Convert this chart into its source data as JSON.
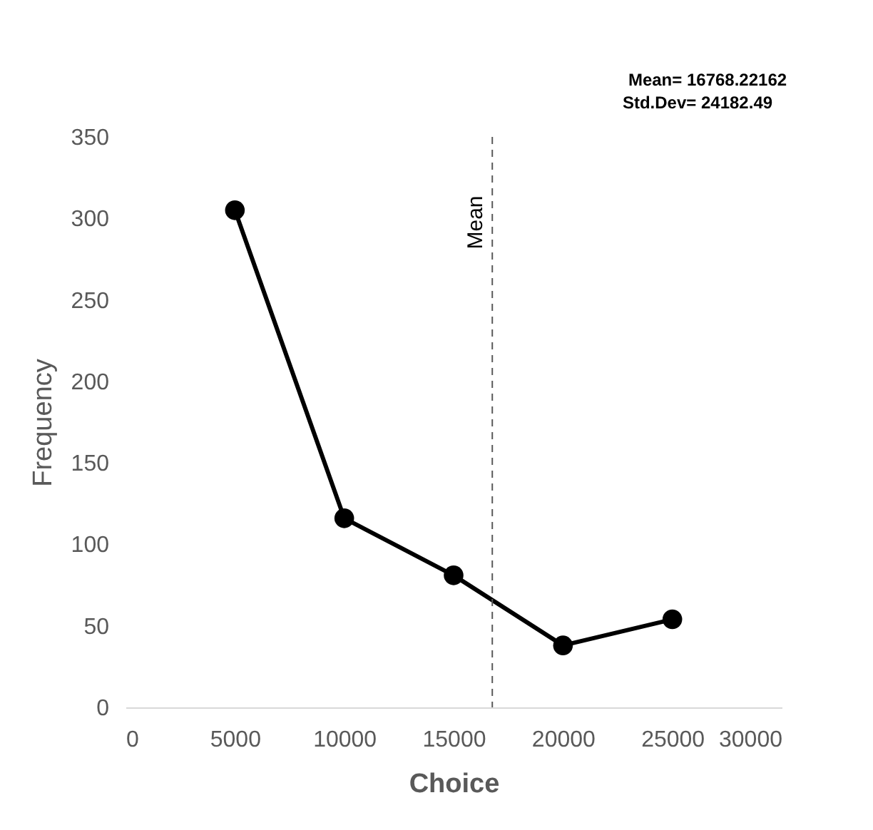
{
  "chart_data": {
    "type": "line",
    "xlabel": "Choice",
    "ylabel": "Frequency",
    "x": [
      5000,
      10000,
      15000,
      20000,
      25000
    ],
    "series": [
      {
        "color": "#000000",
        "values": [
          305,
          116,
          81,
          38,
          54
        ]
      }
    ],
    "xlim": [
      0,
      30000
    ],
    "xticks": [
      0,
      5000,
      10000,
      15000,
      20000,
      25000,
      30000
    ],
    "ylim": [
      0,
      350
    ],
    "yticks": [
      0,
      50,
      100,
      150,
      200,
      250,
      300,
      350
    ],
    "grid": false,
    "marker": "circle",
    "line_style": "solid",
    "ref_lines": [
      {
        "axis": "x",
        "value": 16768.22162,
        "label": "Mean",
        "color": "#595959",
        "line_style": "dashed"
      }
    ],
    "annotations": [
      "Mean= 16768.22162",
      "Std.Dev= 24182.49"
    ]
  }
}
